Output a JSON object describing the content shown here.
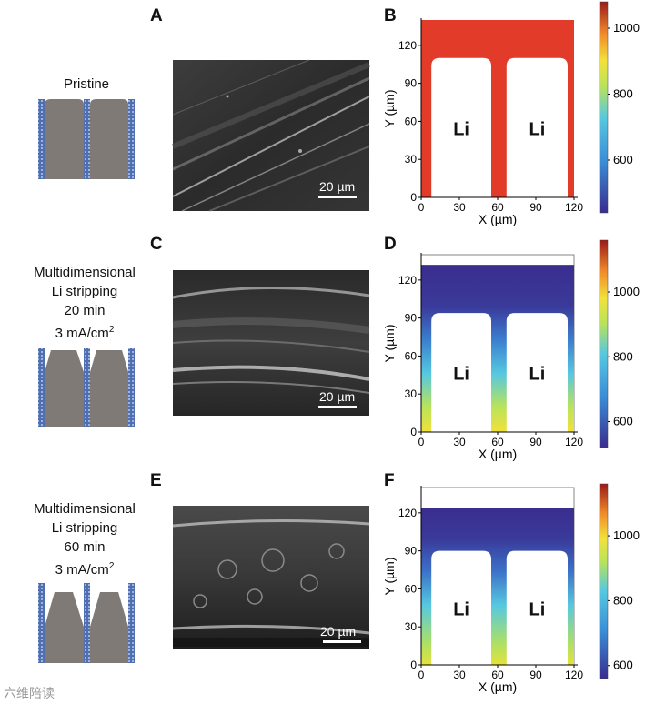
{
  "panels": [
    {
      "letter": "A",
      "type": "sem",
      "scale_bar": "20 µm"
    },
    {
      "letter": "B",
      "type": "simulation"
    },
    {
      "letter": "C",
      "type": "sem",
      "scale_bar": "20 µm"
    },
    {
      "letter": "D",
      "type": "simulation"
    },
    {
      "letter": "E",
      "type": "sem",
      "scale_bar": "20 µm"
    },
    {
      "letter": "F",
      "type": "simulation"
    }
  ],
  "conditions": [
    {
      "lines": [
        "Pristine"
      ]
    },
    {
      "lines": [
        "Multidimensional",
        "Li stripping",
        "20 min",
        "3 mA/cm"
      ],
      "sup": "2"
    },
    {
      "lines": [
        "Multidimensional",
        "Li stripping",
        "60 min",
        "3 mA/cm"
      ],
      "sup": "2"
    }
  ],
  "colors": {
    "lithium_gray": "#7f7a76",
    "separator_blue": "#5b79b8",
    "high_red": "#e23b2a",
    "low_navy": "#3a2d8e"
  },
  "chart_data": [
    {
      "type": "heatmap",
      "panel": "B",
      "xlabel": "X (µm)",
      "ylabel": "Y (µm)",
      "xticks": [
        0,
        30,
        60,
        90,
        120
      ],
      "yticks": [
        0,
        30,
        60,
        90,
        120
      ],
      "xlim": [
        0,
        120
      ],
      "ylim": [
        0,
        140
      ],
      "region_labels": [
        "Li",
        "Li"
      ],
      "colorbar": {
        "ticks": [
          600,
          800,
          1000
        ],
        "range": [
          440,
          1080
        ]
      },
      "field_top_y": 140,
      "pillar_top_y": 110,
      "pillar_x": [
        [
          8,
          55
        ],
        [
          67,
          115
        ]
      ]
    },
    {
      "type": "heatmap",
      "panel": "D",
      "xlabel": "X (µm)",
      "ylabel": "Y (µm)",
      "xticks": [
        0,
        30,
        60,
        90,
        120
      ],
      "yticks": [
        0,
        30,
        60,
        90,
        120
      ],
      "xlim": [
        0,
        120
      ],
      "ylim": [
        0,
        140
      ],
      "region_labels": [
        "Li",
        "Li"
      ],
      "colorbar": {
        "ticks": [
          600,
          800,
          1000
        ],
        "range": [
          520,
          1160
        ]
      },
      "field_top_y": 132,
      "pillar_top_y": 94,
      "pillar_x": [
        [
          8,
          55
        ],
        [
          67,
          115
        ]
      ]
    },
    {
      "type": "heatmap",
      "panel": "F",
      "xlabel": "X (µm)",
      "ylabel": "Y (µm)",
      "xticks": [
        0,
        30,
        60,
        90,
        120
      ],
      "yticks": [
        0,
        30,
        60,
        90,
        120
      ],
      "xlim": [
        0,
        120
      ],
      "ylim": [
        0,
        140
      ],
      "region_labels": [
        "Li",
        "Li"
      ],
      "colorbar": {
        "ticks": [
          600,
          800,
          1000
        ],
        "range": [
          560,
          1160
        ]
      },
      "field_top_y": 124,
      "pillar_top_y": 90,
      "pillar_x": [
        [
          8,
          55
        ],
        [
          67,
          115
        ]
      ]
    }
  ],
  "watermark": "六维陪读"
}
